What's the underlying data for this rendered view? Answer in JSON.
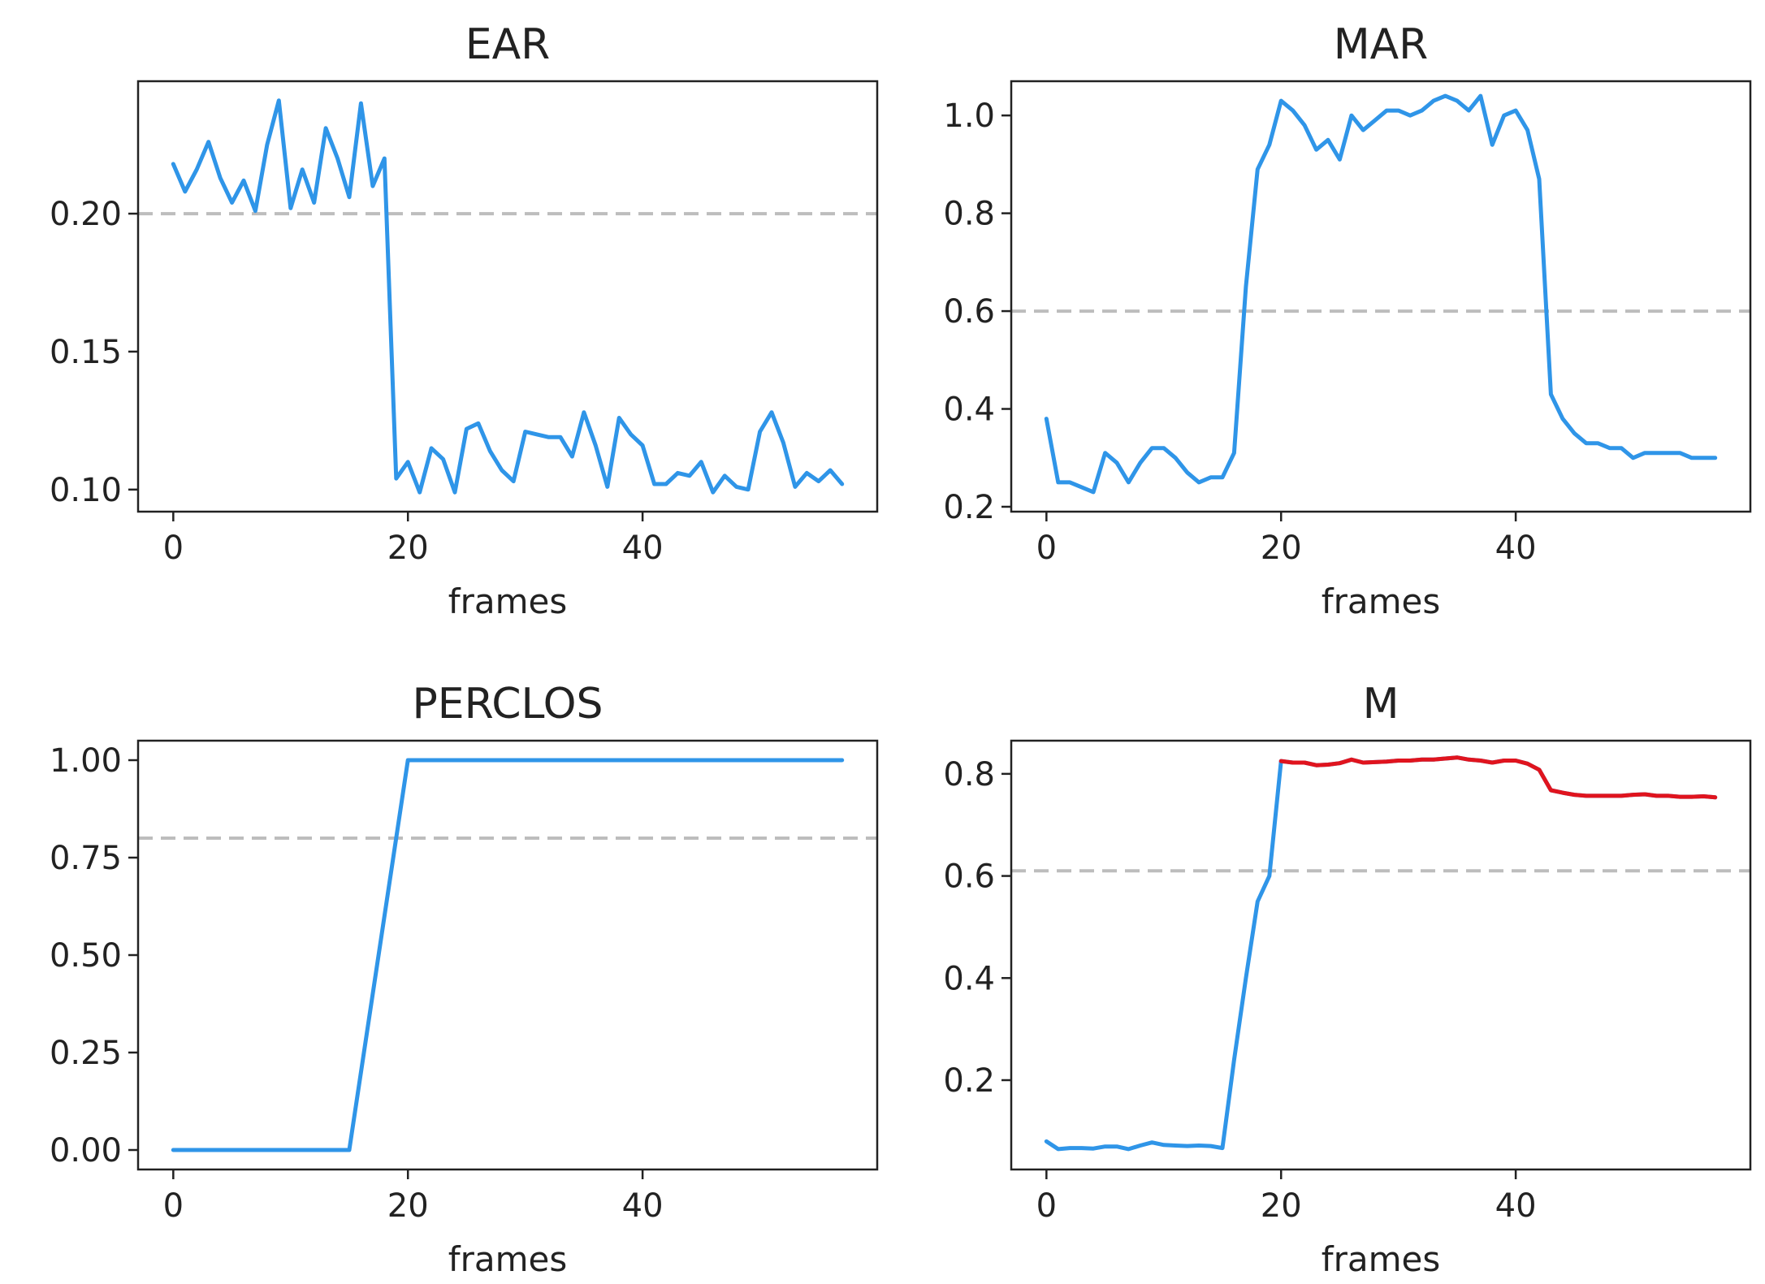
{
  "chart_data": [
    {
      "type": "line",
      "title": "EAR",
      "xlabel": "frames",
      "ylabel": "",
      "xlim": [
        -3,
        60
      ],
      "ylim": [
        0.092,
        0.248
      ],
      "xticks": [
        0,
        20,
        40
      ],
      "xtick_labels": [
        "0",
        "20",
        "40"
      ],
      "yticks": [
        0.1,
        0.15,
        0.2
      ],
      "ytick_labels": [
        "0.10",
        "0.15",
        "0.20"
      ],
      "threshold": 0.2,
      "x": [
        0,
        1,
        2,
        3,
        4,
        5,
        6,
        7,
        8,
        9,
        10,
        11,
        12,
        13,
        14,
        15,
        16,
        17,
        18,
        19,
        20,
        21,
        22,
        23,
        24,
        25,
        26,
        27,
        28,
        29,
        30,
        31,
        32,
        33,
        34,
        35,
        36,
        37,
        38,
        39,
        40,
        41,
        42,
        43,
        44,
        45,
        46,
        47,
        48,
        49,
        50,
        51,
        52,
        53,
        54,
        55,
        56,
        57
      ],
      "series": [
        {
          "name": "EAR",
          "color": "#2f95e8",
          "values": [
            0.218,
            0.208,
            0.216,
            0.226,
            0.213,
            0.204,
            0.212,
            0.201,
            0.225,
            0.241,
            0.202,
            0.216,
            0.204,
            0.231,
            0.22,
            0.206,
            0.24,
            0.21,
            0.22,
            0.104,
            0.11,
            0.099,
            0.115,
            0.111,
            0.099,
            0.122,
            0.124,
            0.114,
            0.107,
            0.103,
            0.121,
            0.12,
            0.119,
            0.119,
            0.112,
            0.128,
            0.116,
            0.101,
            0.126,
            0.12,
            0.116,
            0.102,
            0.102,
            0.106,
            0.105,
            0.11,
            0.099,
            0.105,
            0.101,
            0.1,
            0.121,
            0.128,
            0.117,
            0.101,
            0.106,
            0.103,
            0.107,
            0.102
          ]
        }
      ]
    },
    {
      "type": "line",
      "title": "MAR",
      "xlabel": "frames",
      "ylabel": "",
      "xlim": [
        -3,
        60
      ],
      "ylim": [
        0.19,
        1.07
      ],
      "xticks": [
        0,
        20,
        40
      ],
      "xtick_labels": [
        "0",
        "20",
        "40"
      ],
      "yticks": [
        0.2,
        0.4,
        0.6,
        0.8,
        1.0
      ],
      "ytick_labels": [
        "0.2",
        "0.4",
        "0.6",
        "0.8",
        "1.0"
      ],
      "threshold": 0.6,
      "x": [
        0,
        1,
        2,
        3,
        4,
        5,
        6,
        7,
        8,
        9,
        10,
        11,
        12,
        13,
        14,
        15,
        16,
        17,
        18,
        19,
        20,
        21,
        22,
        23,
        24,
        25,
        26,
        27,
        28,
        29,
        30,
        31,
        32,
        33,
        34,
        35,
        36,
        37,
        38,
        39,
        40,
        41,
        42,
        43,
        44,
        45,
        46,
        47,
        48,
        49,
        50,
        51,
        52,
        53,
        54,
        55,
        56,
        57
      ],
      "series": [
        {
          "name": "MAR",
          "color": "#2f95e8",
          "values": [
            0.38,
            0.25,
            0.25,
            0.24,
            0.23,
            0.31,
            0.29,
            0.25,
            0.29,
            0.32,
            0.32,
            0.3,
            0.27,
            0.25,
            0.26,
            0.26,
            0.31,
            0.65,
            0.89,
            0.94,
            1.03,
            1.01,
            0.98,
            0.93,
            0.95,
            0.91,
            1.0,
            0.97,
            0.99,
            1.01,
            1.01,
            1.0,
            1.01,
            1.03,
            1.04,
            1.03,
            1.01,
            1.04,
            0.94,
            1.0,
            1.01,
            0.97,
            0.87,
            0.43,
            0.38,
            0.35,
            0.33,
            0.33,
            0.32,
            0.32,
            0.3,
            0.31,
            0.31,
            0.31,
            0.31,
            0.3,
            0.3,
            0.3
          ]
        }
      ]
    },
    {
      "type": "line",
      "title": "PERCLOS",
      "xlabel": "frames",
      "ylabel": "",
      "xlim": [
        -3,
        60
      ],
      "ylim": [
        -0.05,
        1.05
      ],
      "xticks": [
        0,
        20,
        40
      ],
      "xtick_labels": [
        "0",
        "20",
        "40"
      ],
      "yticks": [
        0.0,
        0.25,
        0.5,
        0.75,
        1.0
      ],
      "ytick_labels": [
        "0.00",
        "0.25",
        "0.50",
        "0.75",
        "1.00"
      ],
      "threshold": 0.8,
      "x": [
        0,
        15,
        20,
        57
      ],
      "series": [
        {
          "name": "PERCLOS",
          "color": "#2f95e8",
          "values": [
            0.0,
            0.0,
            1.0,
            1.0
          ]
        }
      ]
    },
    {
      "type": "line",
      "title": "M",
      "xlabel": "frames",
      "ylabel": "",
      "xlim": [
        -3,
        60
      ],
      "ylim": [
        0.025,
        0.865
      ],
      "xticks": [
        0,
        20,
        40
      ],
      "xtick_labels": [
        "0",
        "20",
        "40"
      ],
      "yticks": [
        0.2,
        0.4,
        0.6,
        0.8
      ],
      "ytick_labels": [
        "0.2",
        "0.4",
        "0.6",
        "0.8"
      ],
      "threshold": 0.61,
      "x": [
        0,
        1,
        2,
        3,
        4,
        5,
        6,
        7,
        8,
        9,
        10,
        11,
        12,
        13,
        14,
        15,
        16,
        17,
        18,
        19,
        20,
        21,
        22,
        23,
        24,
        25,
        26,
        27,
        28,
        29,
        30,
        31,
        32,
        33,
        34,
        35,
        36,
        37,
        38,
        39,
        40,
        41,
        42,
        43,
        44,
        45,
        46,
        47,
        48,
        49,
        50,
        51,
        52,
        53,
        54,
        55,
        56,
        57
      ],
      "series": [
        {
          "name": "M",
          "color": "#2f95e8",
          "highlight_color": "#e0141e",
          "highlight_above_threshold": true,
          "values": [
            0.08,
            0.065,
            0.067,
            0.067,
            0.066,
            0.07,
            0.07,
            0.065,
            0.072,
            0.078,
            0.073,
            0.072,
            0.071,
            0.072,
            0.071,
            0.067,
            0.24,
            0.4,
            0.55,
            0.6,
            0.825,
            0.822,
            0.822,
            0.817,
            0.818,
            0.821,
            0.828,
            0.822,
            0.823,
            0.824,
            0.826,
            0.826,
            0.828,
            0.828,
            0.83,
            0.832,
            0.828,
            0.826,
            0.822,
            0.826,
            0.826,
            0.82,
            0.808,
            0.768,
            0.763,
            0.759,
            0.757,
            0.757,
            0.757,
            0.757,
            0.759,
            0.76,
            0.757,
            0.757,
            0.755,
            0.755,
            0.756,
            0.754
          ]
        }
      ]
    }
  ]
}
